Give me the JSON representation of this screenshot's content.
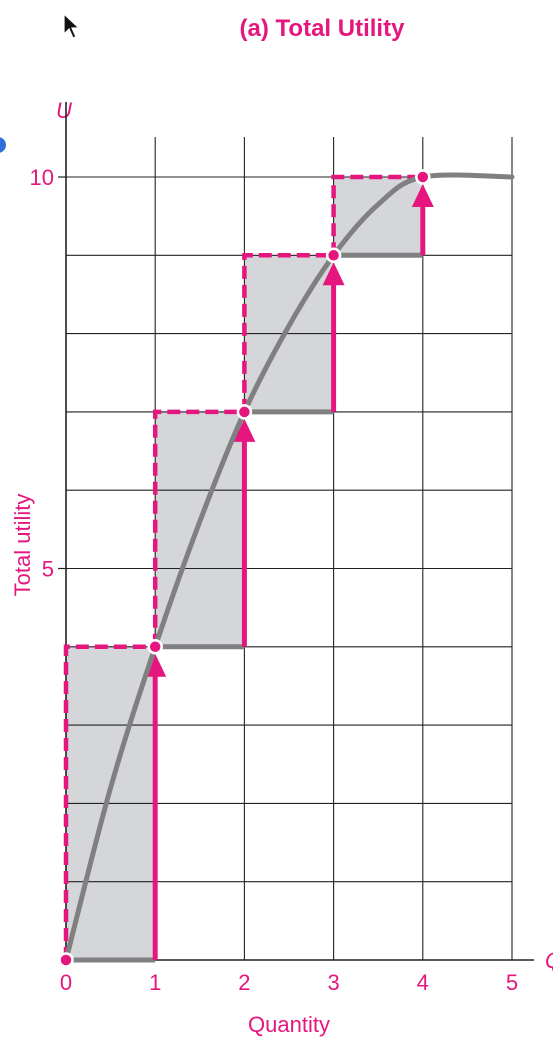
{
  "chart_data": {
    "type": "line",
    "title": "(a) Total Utility",
    "xlabel": "Quantity",
    "ylabel": "Total utility",
    "x_axis_symbol": "Q",
    "y_axis_symbol": "U",
    "xlim": [
      0,
      5
    ],
    "ylim": [
      0,
      10
    ],
    "x_ticks": [
      "0",
      "1",
      "2",
      "3",
      "4",
      "5"
    ],
    "y_ticks": [
      {
        "value": 5,
        "label": "5"
      },
      {
        "value": 10,
        "label": "10"
      }
    ],
    "grid": true,
    "curve": {
      "x": [
        0,
        0.5,
        1,
        1.5,
        2,
        2.5,
        3,
        3.5,
        4,
        5
      ],
      "y": [
        0,
        2.2,
        4,
        5.6,
        7,
        8.1,
        9,
        9.65,
        10,
        10
      ]
    },
    "points": [
      {
        "x": 0,
        "y": 0
      },
      {
        "x": 1,
        "y": 4
      },
      {
        "x": 2,
        "y": 7
      },
      {
        "x": 3,
        "y": 9
      },
      {
        "x": 4,
        "y": 10
      }
    ],
    "steps": [
      {
        "from": 0,
        "to": 1,
        "base": 0,
        "top": 4
      },
      {
        "from": 1,
        "to": 2,
        "base": 4,
        "top": 7
      },
      {
        "from": 2,
        "to": 3,
        "base": 7,
        "top": 9
      },
      {
        "from": 3,
        "to": 4,
        "base": 9,
        "top": 10
      }
    ],
    "colors": {
      "accent": "#e5177e",
      "curve": "#808080",
      "shade": "#d4d6d9",
      "grid": "#222222",
      "axis_text": "#e5177e",
      "tick_text": "#e5177e"
    }
  },
  "cursor": {
    "icon": "arrow-cursor-icon"
  }
}
